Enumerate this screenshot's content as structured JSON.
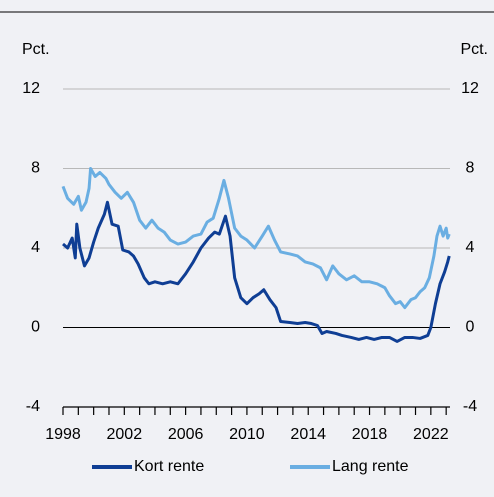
{
  "chart_data": {
    "type": "line",
    "ylabel": "Pct.",
    "ylim": [
      -4,
      12
    ],
    "yticks": [
      -4,
      0,
      4,
      8,
      12
    ],
    "xlim": [
      1998,
      2023.25
    ],
    "xticks": [
      1998,
      2002,
      2006,
      2010,
      2014,
      2018,
      2022
    ],
    "xminor_ticks": [
      1999,
      2000,
      2001,
      2003,
      2004,
      2005,
      2007,
      2008,
      2009,
      2011,
      2012,
      2013,
      2015,
      2016,
      2017,
      2019,
      2020,
      2021,
      2023
    ],
    "grid": true,
    "legend": "bottom",
    "series": [
      {
        "name": "Kort rente",
        "color": "#0f3e94",
        "x": [
          1998.0,
          1998.3,
          1998.6,
          1998.8,
          1998.9,
          1999.1,
          1999.4,
          1999.7,
          2000.0,
          2000.3,
          2000.7,
          2000.9,
          2001.2,
          2001.6,
          2001.9,
          2002.3,
          2002.6,
          2002.9,
          2003.3,
          2003.6,
          2004.0,
          2004.5,
          2005.0,
          2005.5,
          2006.0,
          2006.5,
          2007.0,
          2007.5,
          2007.9,
          2008.2,
          2008.6,
          2008.9,
          2009.2,
          2009.6,
          2010.0,
          2010.4,
          2010.8,
          2011.1,
          2011.5,
          2011.9,
          2012.2,
          2012.8,
          2013.3,
          2013.8,
          2014.2,
          2014.6,
          2014.9,
          2015.2,
          2015.8,
          2016.2,
          2016.8,
          2017.3,
          2017.8,
          2018.3,
          2018.8,
          2019.3,
          2019.8,
          2020.3,
          2020.8,
          2021.3,
          2021.8,
          2022.0,
          2022.3,
          2022.6,
          2022.9,
          2023.1,
          2023.2
        ],
        "values": [
          4.2,
          4.0,
          4.5,
          3.5,
          5.2,
          4.0,
          3.1,
          3.5,
          4.3,
          5.0,
          5.7,
          6.3,
          5.2,
          5.1,
          3.9,
          3.8,
          3.6,
          3.2,
          2.5,
          2.2,
          2.3,
          2.2,
          2.3,
          2.2,
          2.7,
          3.3,
          4.0,
          4.5,
          4.8,
          4.7,
          5.6,
          4.6,
          2.5,
          1.5,
          1.2,
          1.5,
          1.7,
          1.9,
          1.4,
          1.0,
          0.3,
          0.25,
          0.2,
          0.25,
          0.2,
          0.1,
          -0.3,
          -0.2,
          -0.3,
          -0.4,
          -0.5,
          -0.6,
          -0.5,
          -0.6,
          -0.5,
          -0.5,
          -0.7,
          -0.5,
          -0.5,
          -0.55,
          -0.4,
          0.0,
          1.2,
          2.2,
          2.8,
          3.3,
          3.6
        ]
      },
      {
        "name": "Lang rente",
        "color": "#6aaee2",
        "x": [
          1998.0,
          1998.3,
          1998.7,
          1999.0,
          1999.2,
          1999.5,
          1999.7,
          1999.8,
          2000.1,
          2000.4,
          2000.8,
          2001.0,
          2001.4,
          2001.8,
          2002.2,
          2002.6,
          2003.0,
          2003.4,
          2003.8,
          2004.2,
          2004.6,
          2005.0,
          2005.5,
          2006.0,
          2006.5,
          2007.0,
          2007.4,
          2007.8,
          2008.2,
          2008.5,
          2008.8,
          2009.2,
          2009.6,
          2010.0,
          2010.5,
          2011.0,
          2011.4,
          2011.8,
          2012.2,
          2012.8,
          2013.3,
          2013.8,
          2014.3,
          2014.8,
          2015.2,
          2015.6,
          2016.0,
          2016.5,
          2017.0,
          2017.5,
          2018.0,
          2018.5,
          2019.0,
          2019.3,
          2019.7,
          2020.0,
          2020.3,
          2020.7,
          2021.0,
          2021.3,
          2021.6,
          2021.9,
          2022.2,
          2022.4,
          2022.6,
          2022.8,
          2023.0,
          2023.1,
          2023.2
        ],
        "values": [
          7.1,
          6.5,
          6.2,
          6.6,
          5.9,
          6.3,
          7.0,
          8.0,
          7.6,
          7.8,
          7.5,
          7.2,
          6.8,
          6.5,
          6.8,
          6.3,
          5.4,
          5.0,
          5.4,
          5.0,
          4.8,
          4.4,
          4.2,
          4.3,
          4.6,
          4.7,
          5.3,
          5.5,
          6.5,
          7.4,
          6.5,
          5.0,
          4.6,
          4.4,
          4.0,
          4.6,
          5.1,
          4.4,
          3.8,
          3.7,
          3.6,
          3.3,
          3.2,
          3.0,
          2.4,
          3.1,
          2.7,
          2.4,
          2.6,
          2.3,
          2.3,
          2.2,
          2.0,
          1.6,
          1.2,
          1.3,
          1.0,
          1.4,
          1.5,
          1.8,
          2.0,
          2.5,
          3.6,
          4.6,
          5.1,
          4.6,
          5.0,
          4.5,
          4.7
        ]
      }
    ]
  }
}
